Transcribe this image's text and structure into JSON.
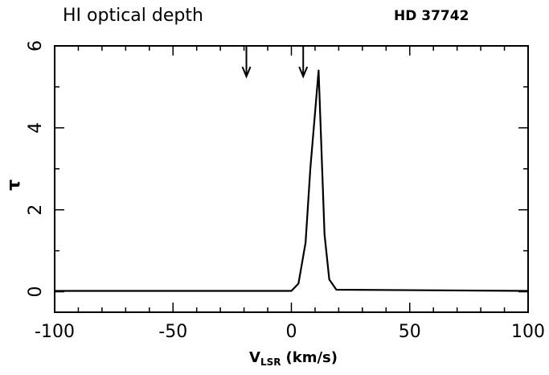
{
  "chart_data": {
    "type": "line",
    "title": "HI optical depth",
    "subtitle": "HD 37742",
    "ylabel": "τ",
    "xlabel": {
      "main": "V",
      "sub": "LSR",
      "unit": "(km/s)"
    },
    "x": [
      -100,
      0,
      3,
      6,
      8,
      11.5,
      14,
      16,
      19,
      100
    ],
    "series": [
      {
        "color": "#000000",
        "values": [
          0.02,
          0.02,
          0.2,
          1.2,
          3,
          5.4,
          1.4,
          0.3,
          0.05,
          0.02
        ]
      }
    ],
    "arrows": [
      -19,
      5
    ],
    "xlim": [
      -100,
      100
    ],
    "ylim": [
      -0.5,
      6
    ],
    "xticks": [
      -100,
      -50,
      0,
      50,
      100
    ],
    "yticks": [
      0,
      2,
      4,
      6
    ],
    "xminorticks": [
      -90,
      -80,
      -70,
      -60,
      -40,
      -30,
      -20,
      -10,
      10,
      20,
      30,
      40,
      60,
      70,
      80,
      90
    ],
    "yminorticks": [
      1,
      3,
      5
    ]
  }
}
